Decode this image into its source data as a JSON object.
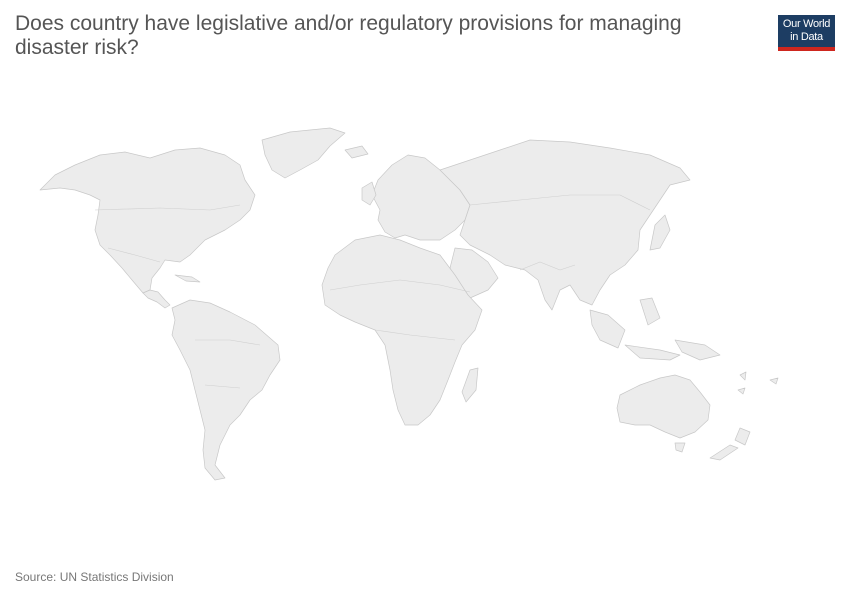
{
  "header": {
    "title": "Does country have legislative and/or regulatory provisions for managing disaster risk?"
  },
  "logo": {
    "line1": "Our World",
    "line2": "in Data",
    "bg_color": "#1d3d63",
    "accent_color": "#ce261e"
  },
  "map": {
    "projection": "world",
    "land_color": "#ececec",
    "border_color": "#c8c8c8"
  },
  "footer": {
    "source": "Source: UN Statistics Division"
  }
}
